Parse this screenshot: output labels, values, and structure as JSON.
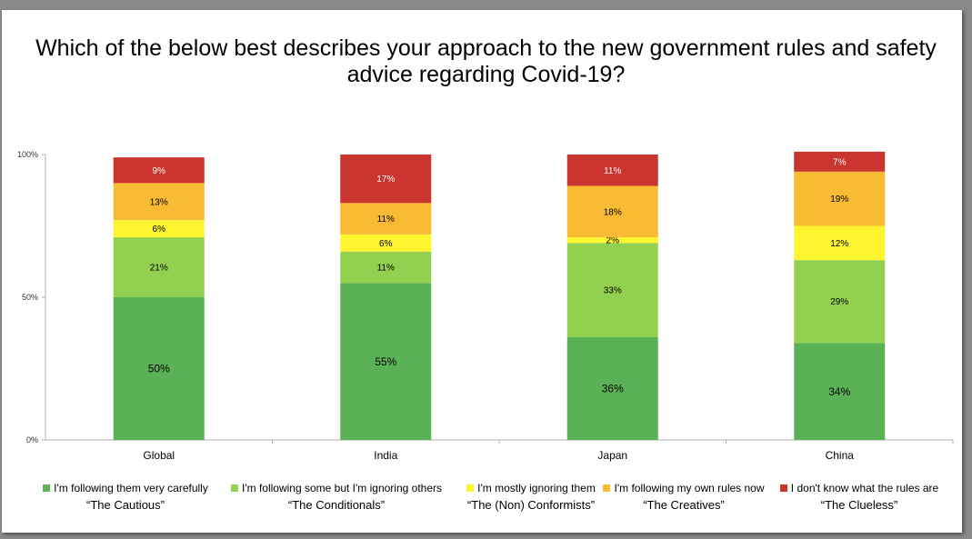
{
  "chart_data": {
    "type": "bar",
    "stacked": true,
    "title": "Which of the below best describes your approach to the new government rules and safety\nadvice regarding Covid-19?",
    "categories": [
      "Global",
      "India",
      "Japan",
      "China"
    ],
    "y_ticks": [
      "0%",
      "50%",
      "100%"
    ],
    "ylim": [
      0,
      100
    ],
    "series": [
      {
        "name": "I'm following them very carefully",
        "subtitle": "“The Cautious”",
        "color": "#5bb256",
        "values": [
          50,
          55,
          36,
          34
        ],
        "labels": [
          "50%",
          "55%",
          "36%",
          "34%"
        ]
      },
      {
        "name": "I'm following some but I'm ignoring others",
        "subtitle": "“The Conditionals”",
        "color": "#92d050",
        "values": [
          21,
          11,
          33,
          29
        ],
        "labels": [
          "21%",
          "11%",
          "33%",
          "29%"
        ]
      },
      {
        "name": "I'm mostly ignoring them",
        "subtitle": "“The (Non) Conformists”",
        "color": "#fff52e",
        "values": [
          6,
          6,
          2,
          12
        ],
        "labels": [
          "6%",
          "6%",
          "2%",
          "12%"
        ]
      },
      {
        "name": "I'm following my own rules now",
        "subtitle": "“The Creatives”",
        "color": "#f8bb33",
        "values": [
          13,
          11,
          18,
          19
        ],
        "labels": [
          "13%",
          "11%",
          "18%",
          "19%"
        ]
      },
      {
        "name": "I don't know what the rules are",
        "subtitle": "“The Clueless”",
        "color": "#cb3530",
        "values": [
          9,
          17,
          11,
          7
        ],
        "labels": [
          "9%",
          "17%",
          "11%",
          "7%"
        ]
      }
    ],
    "legend_position": "bottom"
  }
}
